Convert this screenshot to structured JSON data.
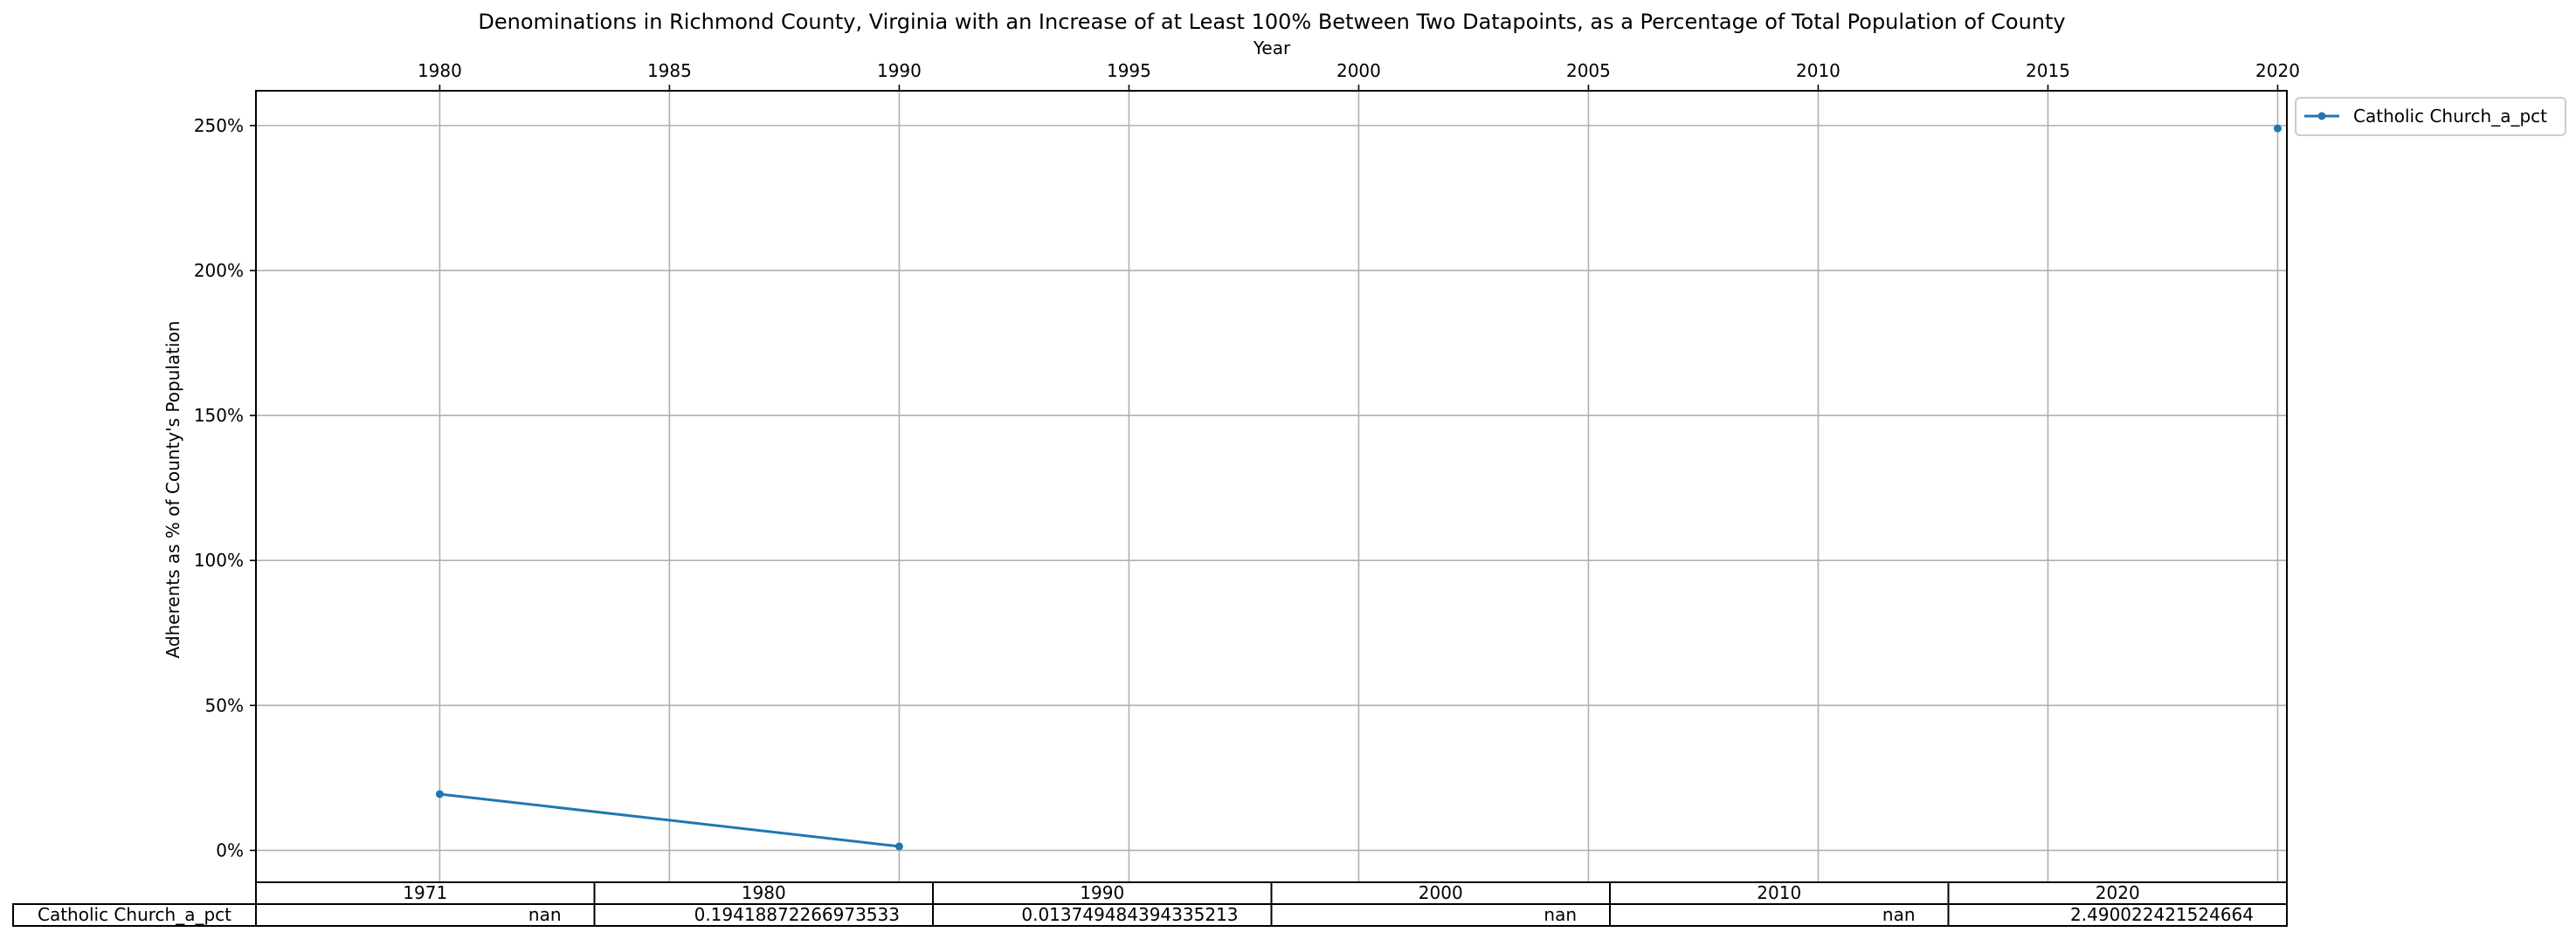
{
  "chart_data": {
    "type": "line",
    "title": "Denominations in Richmond County, Virginia with an Increase of at Least 100% Between Two Datapoints, as a Percentage of Total Population of County",
    "xlabel": "Year",
    "ylabel": "Adherents as % of County's Population",
    "x_ticks": [
      "1980",
      "1985",
      "1990",
      "1995",
      "2000",
      "2005",
      "2010",
      "2015",
      "2020"
    ],
    "y_ticks": [
      "0%",
      "50%",
      "100%",
      "150%",
      "200%",
      "250%"
    ],
    "xlim": [
      1976,
      2020.2
    ],
    "ylim": [
      -0.11,
      2.62
    ],
    "grid": true,
    "legend_position": "outside-top-right",
    "series": [
      {
        "name": "Catholic Church_a_pct",
        "color": "#1f77b4",
        "points": [
          {
            "x": 1980,
            "y": 0.19418872266973533
          },
          {
            "x": 1990,
            "y": 0.013749484394335213
          },
          {
            "x": 2020,
            "y": 2.490022421524664
          }
        ]
      }
    ],
    "table": {
      "columns": [
        "1971",
        "1980",
        "1990",
        "2000",
        "2010",
        "2020"
      ],
      "rows": [
        {
          "label": "Catholic Church_a_pct",
          "cells": [
            "nan",
            "0.19418872266973533",
            "0.013749484394335213",
            "nan",
            "nan",
            "2.490022421524664"
          ]
        }
      ]
    }
  }
}
